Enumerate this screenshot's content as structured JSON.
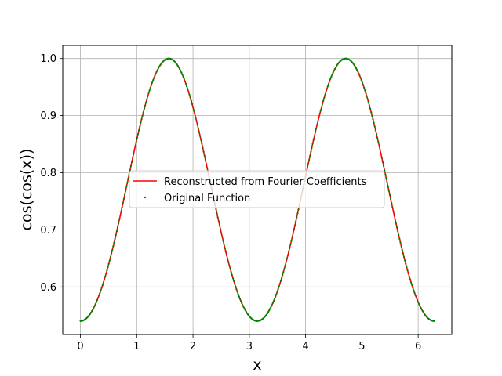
{
  "chart_data": {
    "type": "line",
    "title": "",
    "xlabel": "x",
    "ylabel": "cos(cos(x))",
    "xlim": [
      -0.314,
      6.597
    ],
    "ylim": [
      0.5167,
      1.0229
    ],
    "xticks": [
      0,
      1,
      2,
      3,
      4,
      5,
      6
    ],
    "yticks": [
      0.6,
      0.7,
      0.8,
      0.9,
      1.0
    ],
    "xtick_labels": [
      "0",
      "1",
      "2",
      "3",
      "4",
      "5",
      "6"
    ],
    "ytick_labels": [
      "0.6",
      "0.7",
      "0.8",
      "0.9",
      "1.0"
    ],
    "grid": true,
    "legend_position": "center",
    "x_domain": [
      0,
      6.283
    ],
    "num_points": 400,
    "series": [
      {
        "name": "Reconstructed from Fourier Coefficients",
        "function": "cos(cos(x))",
        "style": "line",
        "color": "#ff0000"
      },
      {
        "name": "Original Function",
        "function": "cos(cos(x))",
        "style": "points",
        "color": "#008000"
      }
    ]
  }
}
